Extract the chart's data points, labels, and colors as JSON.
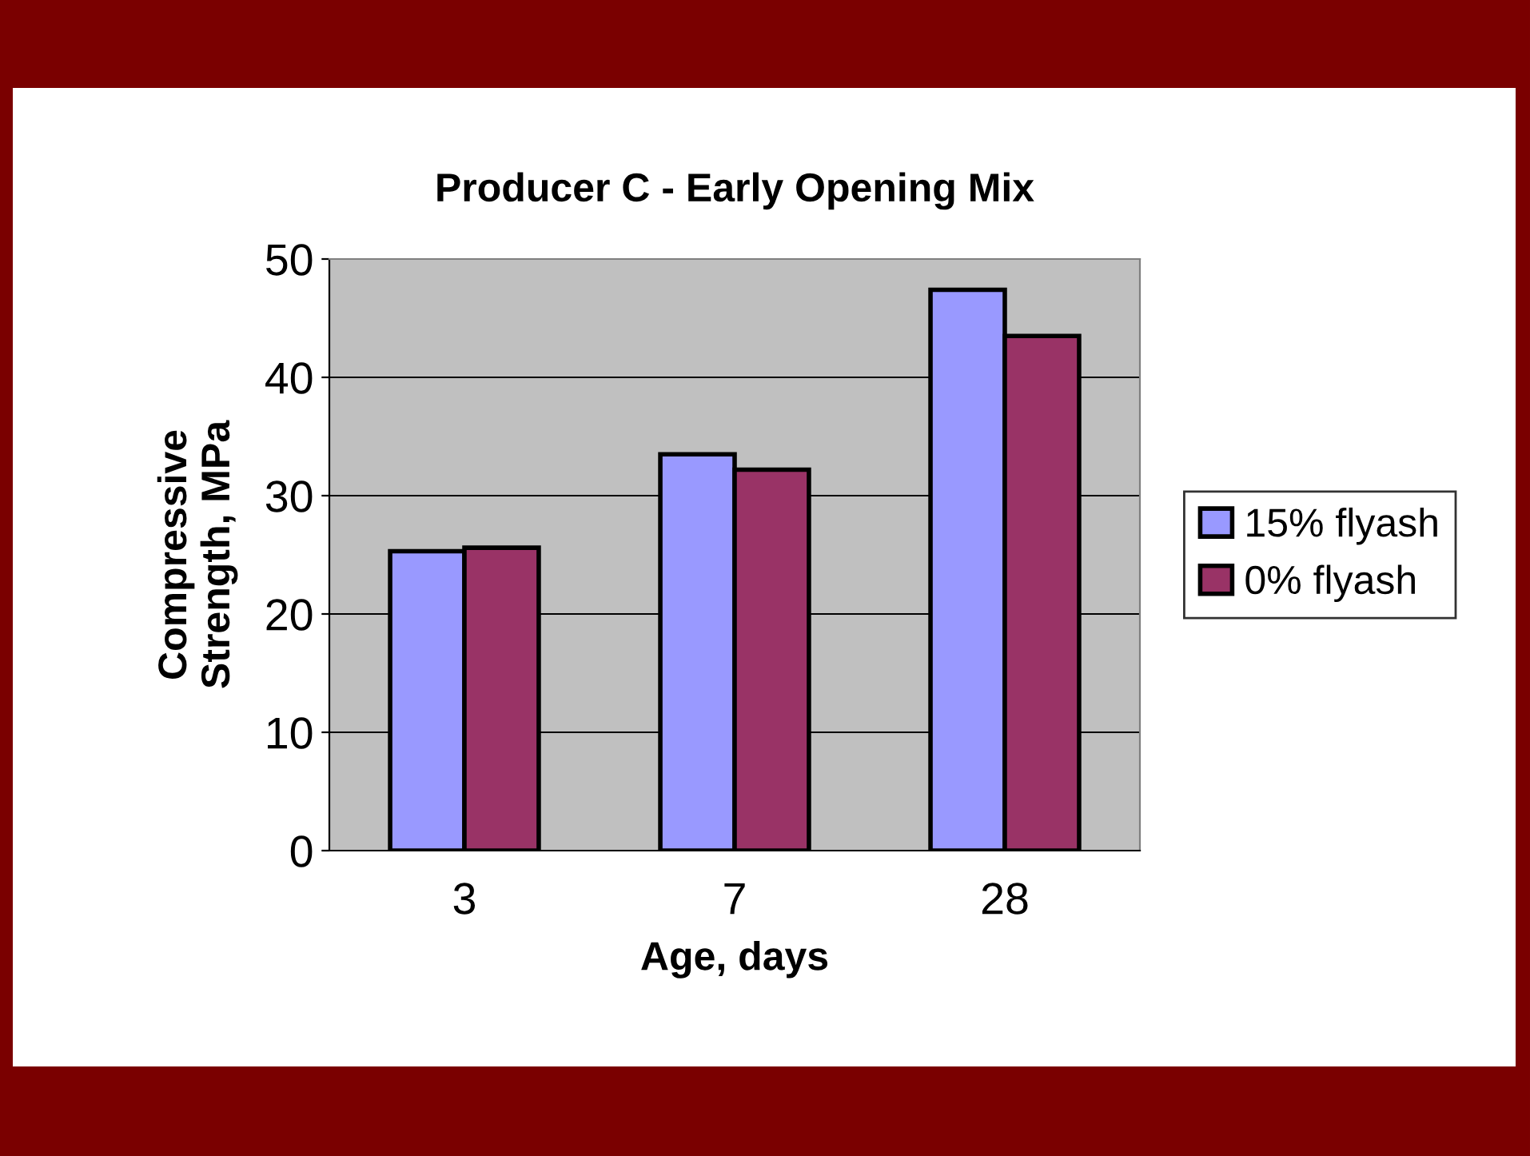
{
  "chart_data": {
    "type": "bar",
    "title": "Producer C - Early Opening Mix",
    "xlabel": "Age, days",
    "ylabel": "Compressive\nStrength, MPa",
    "categories": [
      "3",
      "7",
      "28"
    ],
    "series": [
      {
        "name": "15% flyash",
        "color": "#9999ff",
        "values": [
          25.3,
          33.5,
          47.4
        ]
      },
      {
        "name": "0% flyash",
        "color": "#993366",
        "values": [
          25.6,
          32.2,
          43.5
        ]
      }
    ],
    "ylim": [
      0,
      50
    ],
    "yticks": [
      0,
      10,
      20,
      30,
      40,
      50
    ],
    "grid": "y",
    "legend": "right"
  }
}
